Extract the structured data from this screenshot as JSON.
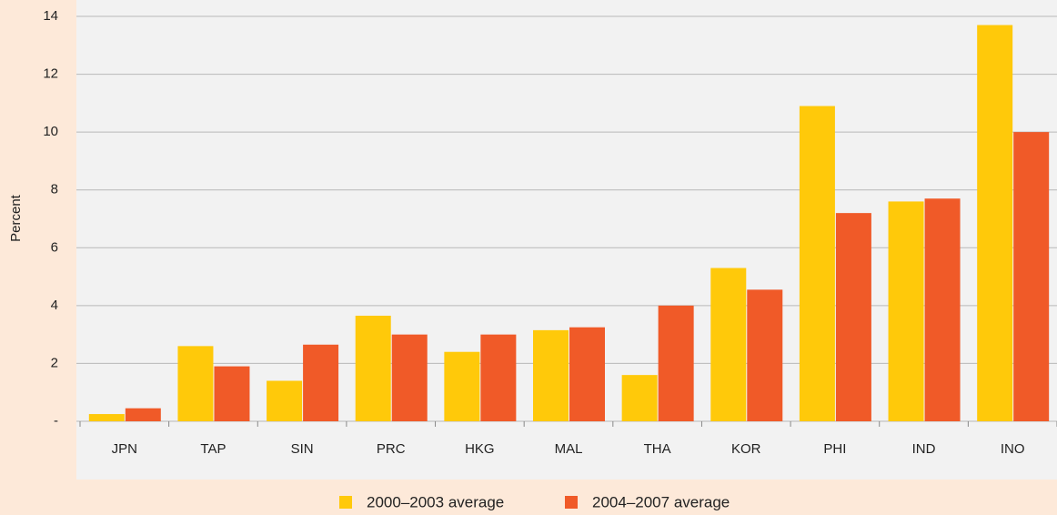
{
  "chart_data": {
    "type": "bar",
    "y_label": "Percent",
    "categories": [
      "JPN",
      "TAP",
      "SIN",
      "PRC",
      "HKG",
      "MAL",
      "THA",
      "KOR",
      "PHI",
      "IND",
      "INO"
    ],
    "series": [
      {
        "name": "2000–2003 average",
        "color": "#ffc90a",
        "values": [
          0.25,
          2.6,
          1.4,
          3.65,
          2.4,
          3.15,
          1.6,
          5.3,
          10.9,
          7.6,
          13.7
        ]
      },
      {
        "name": "2004–2007 average",
        "color": "#f05a28",
        "values": [
          0.45,
          1.9,
          2.65,
          3.0,
          3.0,
          3.25,
          4.0,
          4.55,
          7.2,
          7.7,
          10.0
        ]
      }
    ],
    "ylim": [
      0,
      14
    ],
    "yticks": [
      {
        "value": 0,
        "label": "-"
      },
      2,
      4,
      6,
      8,
      10,
      12,
      14
    ],
    "grid": true
  }
}
